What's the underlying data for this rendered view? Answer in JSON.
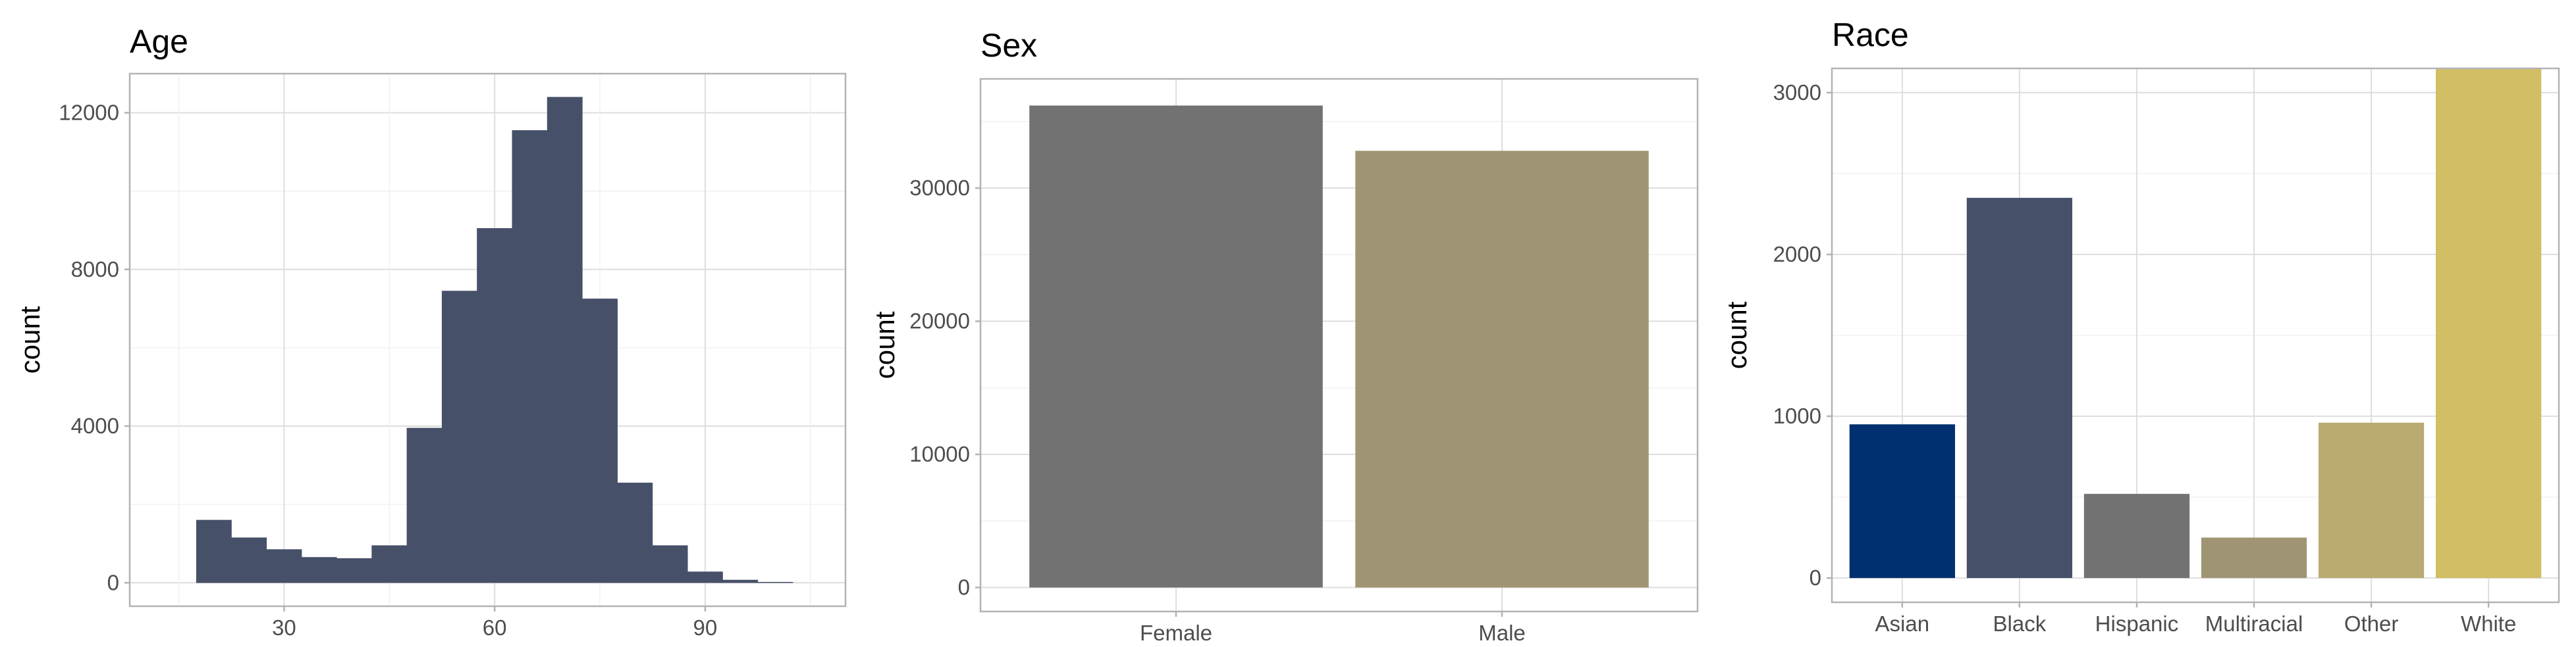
{
  "chart_data": [
    {
      "type": "bar",
      "subtype": "histogram",
      "title": "Age",
      "xlabel": "",
      "ylabel": "count",
      "xlim": [
        8,
        110
      ],
      "ylim": [
        -600,
        13000
      ],
      "x_ticks": [
        30,
        60,
        90
      ],
      "y_ticks": [
        0,
        4000,
        8000,
        12000
      ],
      "color": "#475069",
      "grid": true,
      "bins": [
        {
          "x0": 17.5,
          "x1": 22.5,
          "count": 1600
        },
        {
          "x0": 22.5,
          "x1": 27.5,
          "count": 1150
        },
        {
          "x0": 27.5,
          "x1": 32.5,
          "count": 850
        },
        {
          "x0": 32.5,
          "x1": 37.5,
          "count": 650
        },
        {
          "x0": 37.5,
          "x1": 42.5,
          "count": 620
        },
        {
          "x0": 42.5,
          "x1": 47.5,
          "count": 950
        },
        {
          "x0": 47.5,
          "x1": 52.5,
          "count": 3950
        },
        {
          "x0": 52.5,
          "x1": 57.5,
          "count": 7450
        },
        {
          "x0": 57.5,
          "x1": 62.5,
          "count": 9050
        },
        {
          "x0": 62.5,
          "x1": 67.5,
          "count": 11550
        },
        {
          "x0": 67.5,
          "x1": 72.5,
          "count": 12400
        },
        {
          "x0": 72.5,
          "x1": 77.5,
          "count": 7250
        },
        {
          "x0": 77.5,
          "x1": 82.5,
          "count": 2550
        },
        {
          "x0": 82.5,
          "x1": 87.5,
          "count": 950
        },
        {
          "x0": 87.5,
          "x1": 92.5,
          "count": 280
        },
        {
          "x0": 92.5,
          "x1": 97.5,
          "count": 70
        },
        {
          "x0": 97.5,
          "x1": 102.5,
          "count": 15
        }
      ]
    },
    {
      "type": "bar",
      "title": "Sex",
      "xlabel": "",
      "ylabel": "count",
      "ylim": [
        -1800,
        38200
      ],
      "y_ticks": [
        0,
        10000,
        20000,
        30000
      ],
      "grid": true,
      "categories": [
        "Female",
        "Male"
      ],
      "values": [
        36200,
        32800
      ],
      "colors": [
        "#727273",
        "#9f9575"
      ]
    },
    {
      "type": "bar",
      "title": "Race",
      "xlabel": "",
      "ylabel": "count",
      "ylim": [
        -150,
        3150
      ],
      "y_ticks": [
        0,
        1000,
        2000,
        3000
      ],
      "grid": true,
      "categories": [
        "Asian",
        "Black",
        "Hispanic",
        "Multiracial",
        "Other",
        "White"
      ],
      "values": [
        950,
        2350,
        520,
        250,
        960,
        3150
      ],
      "colors": [
        "#00306f",
        "#475069",
        "#727273",
        "#9f9575",
        "#b9ab71",
        "#d1be65"
      ]
    }
  ]
}
